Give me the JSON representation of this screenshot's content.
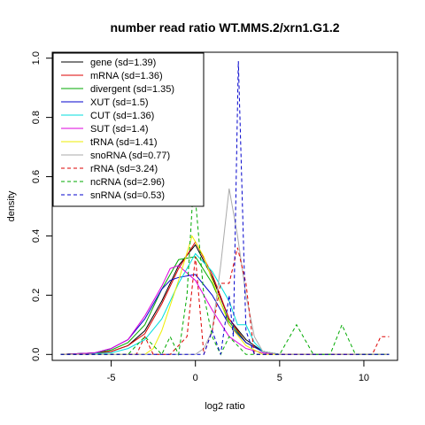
{
  "chart_data": {
    "type": "line",
    "title": "number read ratio WT.MMS.2/xrn1.G1.2",
    "xlabel": "log2 ratio",
    "ylabel": "density",
    "xlim": [
      -8.5,
      12
    ],
    "ylim": [
      -0.02,
      1.02
    ],
    "xticks": [
      -5,
      0,
      5,
      10
    ],
    "yticks": [
      0.0,
      0.2,
      0.4,
      0.6,
      0.8,
      1.0
    ],
    "xtick_labels": [
      "-5",
      "0",
      "5",
      "10"
    ],
    "ytick_labels": [
      "0.0",
      "0.2",
      "0.4",
      "0.6",
      "0.8",
      "1.0"
    ],
    "grid": false,
    "legend_position": "top-left",
    "series": [
      {
        "name": "gene (sd=1.39)",
        "color": "#000000",
        "dash": "solid",
        "points": [
          [
            -8,
            0
          ],
          [
            -6,
            0.005
          ],
          [
            -5,
            0.01
          ],
          [
            -4,
            0.03
          ],
          [
            -3,
            0.08
          ],
          [
            -2,
            0.18
          ],
          [
            -1,
            0.3
          ],
          [
            0,
            0.37
          ],
          [
            1,
            0.26
          ],
          [
            2,
            0.12
          ],
          [
            3,
            0.05
          ],
          [
            4,
            0.01
          ],
          [
            5,
            0
          ],
          [
            6,
            0
          ],
          [
            8,
            0
          ],
          [
            10,
            0
          ],
          [
            11.5,
            0
          ]
        ]
      },
      {
        "name": "mRNA (sd=1.36)",
        "color": "#dd0000",
        "dash": "solid",
        "points": [
          [
            -8,
            0
          ],
          [
            -6,
            0.004
          ],
          [
            -5,
            0.01
          ],
          [
            -4,
            0.03
          ],
          [
            -3,
            0.07
          ],
          [
            -2,
            0.17
          ],
          [
            -1,
            0.29
          ],
          [
            0,
            0.38
          ],
          [
            1,
            0.27
          ],
          [
            2,
            0.12
          ],
          [
            3,
            0.04
          ],
          [
            4,
            0.01
          ],
          [
            5,
            0
          ],
          [
            8,
            0
          ],
          [
            11.5,
            0
          ]
        ]
      },
      {
        "name": "divergent (sd=1.35)",
        "color": "#00aa00",
        "dash": "solid",
        "points": [
          [
            -8,
            0
          ],
          [
            -6,
            0.005
          ],
          [
            -5,
            0.015
          ],
          [
            -4,
            0.04
          ],
          [
            -3,
            0.1
          ],
          [
            -2,
            0.22
          ],
          [
            -1,
            0.32
          ],
          [
            0,
            0.33
          ],
          [
            1,
            0.24
          ],
          [
            2,
            0.11
          ],
          [
            3,
            0.04
          ],
          [
            4,
            0.01
          ],
          [
            5,
            0
          ],
          [
            8,
            0
          ],
          [
            11.5,
            0
          ]
        ]
      },
      {
        "name": "XUT (sd=1.5)",
        "color": "#0000cc",
        "dash": "solid",
        "points": [
          [
            -8,
            0
          ],
          [
            -6,
            0.005
          ],
          [
            -5,
            0.02
          ],
          [
            -4,
            0.05
          ],
          [
            -3,
            0.12
          ],
          [
            -2,
            0.22
          ],
          [
            -1.5,
            0.25
          ],
          [
            -1,
            0.26
          ],
          [
            0,
            0.27
          ],
          [
            1,
            0.2
          ],
          [
            2,
            0.1
          ],
          [
            3,
            0.04
          ],
          [
            4,
            0.01
          ],
          [
            5,
            0
          ],
          [
            8,
            0
          ],
          [
            11.5,
            0
          ]
        ]
      },
      {
        "name": "CUT (sd=1.36)",
        "color": "#00dddd",
        "dash": "solid",
        "points": [
          [
            -8,
            0
          ],
          [
            -5,
            0.005
          ],
          [
            -4,
            0.02
          ],
          [
            -3,
            0.05
          ],
          [
            -2,
            0.12
          ],
          [
            -1,
            0.24
          ],
          [
            0,
            0.34
          ],
          [
            1,
            0.28
          ],
          [
            2,
            0.18
          ],
          [
            2.5,
            0.1
          ],
          [
            3,
            0.1
          ],
          [
            3.5,
            0.04
          ],
          [
            4,
            0.01
          ],
          [
            5,
            0
          ],
          [
            8,
            0
          ],
          [
            11.5,
            0
          ]
        ]
      },
      {
        "name": "SUT (sd=1.4)",
        "color": "#dd00dd",
        "dash": "solid",
        "points": [
          [
            -8,
            0
          ],
          [
            -6,
            0.005
          ],
          [
            -5,
            0.02
          ],
          [
            -4,
            0.05
          ],
          [
            -3,
            0.13
          ],
          [
            -2,
            0.23
          ],
          [
            -1.5,
            0.29
          ],
          [
            -1,
            0.3
          ],
          [
            0,
            0.25
          ],
          [
            1,
            0.15
          ],
          [
            2,
            0.06
          ],
          [
            3,
            0.02
          ],
          [
            4,
            0.005
          ],
          [
            5,
            0
          ],
          [
            8,
            0
          ],
          [
            11.5,
            0
          ]
        ]
      },
      {
        "name": "tRNA (sd=1.41)",
        "color": "#eeee00",
        "dash": "solid",
        "points": [
          [
            -8,
            0
          ],
          [
            -3,
            0
          ],
          [
            -2.5,
            0.02
          ],
          [
            -2,
            0.08
          ],
          [
            -1,
            0.25
          ],
          [
            -0.2,
            0.4
          ],
          [
            0.5,
            0.33
          ],
          [
            1,
            0.25
          ],
          [
            2,
            0.1
          ],
          [
            3,
            0.03
          ],
          [
            4,
            0
          ],
          [
            8,
            0
          ],
          [
            11.5,
            0
          ]
        ]
      },
      {
        "name": "snoRNA (sd=0.77)",
        "color": "#aaaaaa",
        "dash": "solid",
        "points": [
          [
            -8,
            0
          ],
          [
            -1,
            0
          ],
          [
            0,
            0
          ],
          [
            0.5,
            0.02
          ],
          [
            1,
            0.08
          ],
          [
            1.5,
            0.3
          ],
          [
            2,
            0.56
          ],
          [
            2.5,
            0.4
          ],
          [
            3,
            0.2
          ],
          [
            3.5,
            0.06
          ],
          [
            4,
            0.01
          ],
          [
            5,
            0
          ],
          [
            8,
            0
          ],
          [
            11.5,
            0
          ]
        ]
      },
      {
        "name": "rRNA (sd=3.24)",
        "color": "#dd0000",
        "dash": "dashed",
        "points": [
          [
            -8,
            0
          ],
          [
            -3.5,
            0
          ],
          [
            -3,
            0.06
          ],
          [
            -2.5,
            0
          ],
          [
            -1.5,
            0
          ],
          [
            -0.5,
            0.06
          ],
          [
            0,
            0.33
          ],
          [
            0.5,
            0
          ],
          [
            1,
            0.08
          ],
          [
            1.5,
            0.24
          ],
          [
            2,
            0.24
          ],
          [
            2.5,
            0.36
          ],
          [
            3,
            0.24
          ],
          [
            3.5,
            0
          ],
          [
            9.5,
            0
          ],
          [
            10.5,
            0
          ],
          [
            11,
            0.06
          ],
          [
            11.5,
            0.06
          ]
        ]
      },
      {
        "name": "ncRNA (sd=2.96)",
        "color": "#00aa00",
        "dash": "dashed",
        "points": [
          [
            -8,
            0
          ],
          [
            -4,
            0
          ],
          [
            -3,
            0.06
          ],
          [
            -2,
            0
          ],
          [
            -1.5,
            0.06
          ],
          [
            -1,
            0
          ],
          [
            -0.5,
            0.2
          ],
          [
            -0.1,
            0.59
          ],
          [
            0.5,
            0.2
          ],
          [
            1,
            0.06
          ],
          [
            1.5,
            0
          ],
          [
            2,
            0.06
          ],
          [
            3,
            0
          ],
          [
            5,
            0
          ],
          [
            6,
            0.1
          ],
          [
            7,
            0
          ],
          [
            8,
            0
          ],
          [
            8.7,
            0.1
          ],
          [
            9.5,
            0
          ],
          [
            11.5,
            0
          ]
        ]
      },
      {
        "name": "snRNA (sd=0.53)",
        "color": "#0000cc",
        "dash": "dashed",
        "points": [
          [
            -8,
            0
          ],
          [
            0.5,
            0
          ],
          [
            1,
            0.08
          ],
          [
            1.5,
            0
          ],
          [
            2,
            0.2
          ],
          [
            2.25,
            0.06
          ],
          [
            2.55,
            0.99
          ],
          [
            3,
            0.08
          ],
          [
            3.5,
            0
          ],
          [
            8,
            0
          ],
          [
            11.5,
            0
          ]
        ]
      }
    ]
  }
}
